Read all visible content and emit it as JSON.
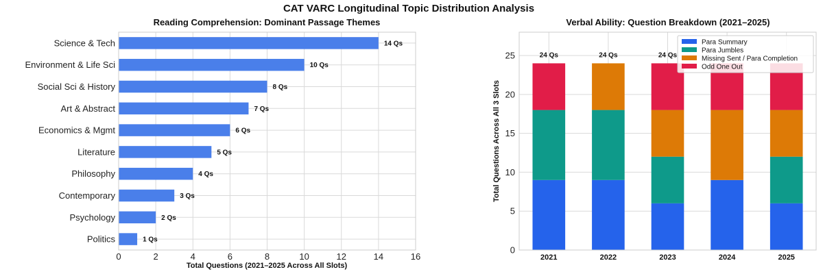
{
  "title": "CAT VARC Longitudinal Topic Distribution Analysis",
  "chart_data": [
    {
      "type": "bar",
      "orientation": "horizontal",
      "title": "Reading Comprehension: Dominant Passage Themes",
      "xlabel": "Total Questions (2021–2025 Across All Slots)",
      "ylabel": "",
      "categories": [
        "Science & Tech",
        "Environment & Life Sci",
        "Social Sci & History",
        "Art & Abstract",
        "Economics & Mgmt",
        "Literature",
        "Philosophy",
        "Contemporary",
        "Psychology",
        "Politics"
      ],
      "values": [
        14,
        10,
        8,
        7,
        6,
        5,
        4,
        3,
        2,
        1
      ],
      "data_labels": [
        "14 Qs",
        "10 Qs",
        "8 Qs",
        "7 Qs",
        "6 Qs",
        "5 Qs",
        "4 Qs",
        "3 Qs",
        "2 Qs",
        "1 Qs"
      ],
      "xlim": [
        0,
        16
      ],
      "xticks": [
        "0",
        "2",
        "4",
        "6",
        "8",
        "10",
        "12",
        "14",
        "16"
      ],
      "color": "#4a7fea",
      "grid": true
    },
    {
      "type": "bar",
      "stacked": true,
      "title": "Verbal Ability: Question Breakdown (2021–2025)",
      "xlabel": "",
      "ylabel": "Total Questions Across All 3 Slots",
      "categories": [
        "2021",
        "2022",
        "2023",
        "2024",
        "2025"
      ],
      "series": [
        {
          "name": "Para Summary",
          "values": [
            9,
            9,
            6,
            9,
            6
          ],
          "color": "#2563eb"
        },
        {
          "name": "Para Jumbles",
          "values": [
            9,
            9,
            6,
            0,
            6
          ],
          "color": "#0e9a8a"
        },
        {
          "name": "Missing Sent / Para Completion",
          "values": [
            0,
            6,
            6,
            9,
            6
          ],
          "color": "#dd7a06"
        },
        {
          "name": "Odd One Out",
          "values": [
            6,
            0,
            6,
            6,
            6
          ],
          "color": "#e11d48"
        }
      ],
      "total_labels": [
        "24 Qs",
        "24 Qs",
        "24 Qs",
        "",
        ""
      ],
      "ylim": [
        0,
        28
      ],
      "yticks": [
        "0",
        "5",
        "10",
        "15",
        "20",
        "25"
      ],
      "legend": "top-right",
      "grid": true
    }
  ]
}
